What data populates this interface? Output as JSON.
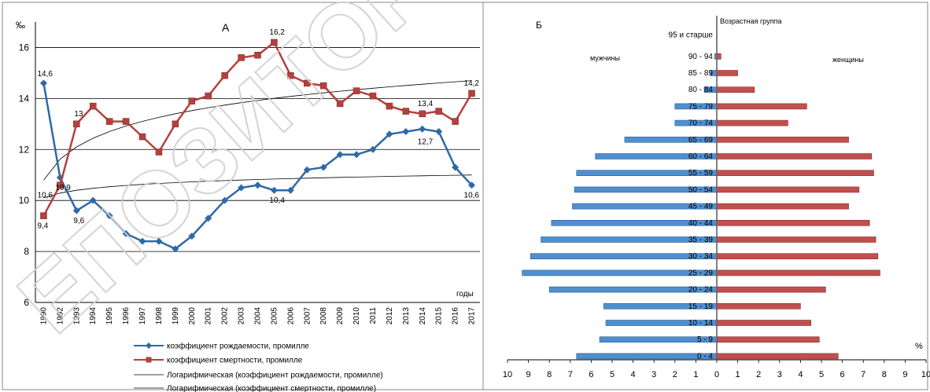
{
  "colors": {
    "birth": "#2e6aa6",
    "death": "#b5403d",
    "trend": "#000000",
    "grid": "#000000",
    "male_bar": "#4f8fcf",
    "female_bar": "#c0504d",
    "watermark": "#c8c8c8"
  },
  "watermark": {
    "text": "ЕПОЗИТОРИЙ"
  },
  "chart_data": [
    {
      "type": "line",
      "panel_label": "А",
      "ylabel": "‰",
      "xlabel": "годы",
      "ylim": [
        6,
        17
      ],
      "yticks": [
        6,
        8,
        10,
        12,
        14,
        16
      ],
      "grid": "horizontal",
      "x": [
        "1990",
        "1992",
        "1993",
        "1994",
        "1995",
        "1996",
        "1997",
        "1998",
        "1999",
        "2000",
        "2001",
        "2002",
        "2003",
        "2004",
        "2005",
        "2006",
        "2007",
        "2008",
        "2009",
        "2010",
        "2011",
        "2012",
        "2013",
        "2014",
        "2015",
        "2016",
        "2017"
      ],
      "series": [
        {
          "name": "коэффициент рождаемости, промилле",
          "color_key": "birth",
          "marker": "diamond",
          "values": [
            14.6,
            10.9,
            9.6,
            10.0,
            9.4,
            8.7,
            8.4,
            8.4,
            8.1,
            8.6,
            9.3,
            10.0,
            10.5,
            10.6,
            10.4,
            10.4,
            11.2,
            11.3,
            11.8,
            11.8,
            12.0,
            12.6,
            12.7,
            12.8,
            12.7,
            11.3,
            10.6
          ]
        },
        {
          "name": "коэффициент смертности, промилле",
          "color_key": "death",
          "marker": "square",
          "values": [
            9.4,
            10.6,
            13.0,
            13.7,
            13.1,
            13.1,
            12.5,
            11.9,
            13.0,
            13.9,
            14.1,
            14.9,
            15.6,
            15.7,
            16.2,
            14.9,
            14.6,
            14.5,
            13.8,
            14.3,
            14.1,
            13.7,
            13.5,
            13.4,
            13.5,
            13.1,
            14.2
          ]
        }
      ],
      "trendlines": [
        {
          "name": "Логарифмическая (коэффициент рождаемости, промилле)",
          "fit": "logarithmic",
          "start": 10.1,
          "end": 11.0
        },
        {
          "name": "Логарифмическая (коэффициент смертности, промилле)",
          "fit": "logarithmic",
          "start": 10.8,
          "end": 14.7
        }
      ],
      "annotations": [
        {
          "text": "14,6",
          "x": "1990",
          "y": 14.6
        },
        {
          "text": "10,6",
          "x": "1990",
          "y": 10.6
        },
        {
          "text": "10,9",
          "x": "1992",
          "y": 10.9
        },
        {
          "text": "9,4",
          "x": "1990",
          "y": 9.4
        },
        {
          "text": "13",
          "x": "1993",
          "y": 13.0
        },
        {
          "text": "9,6",
          "x": "1993",
          "y": 9.6
        },
        {
          "text": "16,2",
          "x": "2005",
          "y": 16.2
        },
        {
          "text": "10,4",
          "x": "2005",
          "y": 10.4
        },
        {
          "text": "13,4",
          "x": "2014",
          "y": 13.4
        },
        {
          "text": "12,7",
          "x": "2014",
          "y": 12.7
        },
        {
          "text": "14,2",
          "x": "2017",
          "y": 14.2
        },
        {
          "text": "10,6",
          "x": "2017",
          "y": 10.6
        }
      ]
    },
    {
      "type": "bar",
      "orientation": "horizontal-pyramid",
      "panel_label": "Б",
      "axis_title": "Возрастная группа",
      "unit_label": "%",
      "left_label": "мужчины",
      "right_label": "женщины",
      "xlim": [
        -10,
        10
      ],
      "xticks": [
        10,
        9,
        8,
        7,
        6,
        5,
        4,
        3,
        2,
        1,
        0,
        1,
        2,
        3,
        4,
        5,
        6,
        7,
        8,
        9,
        10
      ],
      "categories": [
        "95 и старше",
        "90 - 94",
        "85 - 89",
        "80 - 84",
        "75 - 79",
        "70 - 74",
        "65 - 69",
        "60 - 64",
        "55 - 59",
        "50 - 54",
        "45 - 49",
        "40 - 44",
        "35 - 39",
        "30 - 34",
        "25 - 29",
        "20 - 24",
        "15 - 19",
        "10 - 14",
        "5 - 9",
        "0 - 4"
      ],
      "series": [
        {
          "name": "мужчины",
          "color_key": "male_bar",
          "values": [
            0,
            0.1,
            0.3,
            0.6,
            2.0,
            2.0,
            4.4,
            5.8,
            6.7,
            6.8,
            6.9,
            7.9,
            8.4,
            8.9,
            9.3,
            8.0,
            5.4,
            5.3,
            5.6,
            6.7
          ]
        },
        {
          "name": "женщины",
          "color_key": "female_bar",
          "values": [
            0,
            0.2,
            1.0,
            1.8,
            4.3,
            3.4,
            6.3,
            7.4,
            7.5,
            6.8,
            6.3,
            7.3,
            7.6,
            7.7,
            7.8,
            5.2,
            4.0,
            4.5,
            4.9,
            5.8
          ]
        }
      ]
    }
  ]
}
